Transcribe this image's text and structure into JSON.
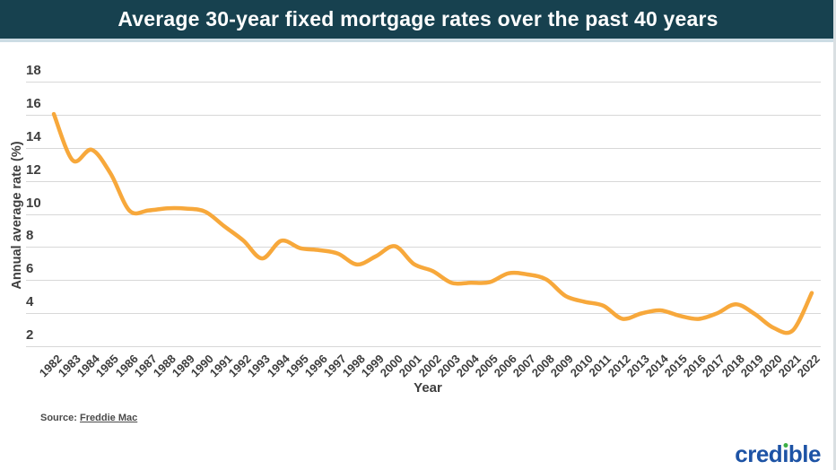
{
  "title": "Average 30-year fixed mortgage rates over the past 40 years",
  "chart_data": {
    "type": "line",
    "title": "Average 30-year fixed mortgage rates over the past 40 years",
    "xlabel": "Year",
    "ylabel": "Annual average rate (%)",
    "x": [
      1982,
      1983,
      1984,
      1985,
      1986,
      1987,
      1988,
      1989,
      1990,
      1991,
      1992,
      1993,
      1994,
      1995,
      1996,
      1997,
      1998,
      1999,
      2000,
      2001,
      2002,
      2003,
      2004,
      2005,
      2006,
      2007,
      2008,
      2009,
      2010,
      2011,
      2012,
      2013,
      2014,
      2015,
      2016,
      2017,
      2018,
      2019,
      2020,
      2021,
      2022
    ],
    "series": [
      {
        "name": "Average 30-year fixed mortgage rate",
        "values": [
          16.04,
          13.24,
          13.88,
          12.43,
          10.19,
          10.21,
          10.34,
          10.32,
          10.13,
          9.25,
          8.39,
          7.31,
          8.38,
          7.93,
          7.81,
          7.6,
          6.94,
          7.44,
          8.05,
          6.97,
          6.54,
          5.83,
          5.84,
          5.87,
          6.41,
          6.34,
          6.03,
          5.04,
          4.69,
          4.45,
          3.66,
          3.98,
          4.17,
          3.85,
          3.65,
          3.99,
          4.54,
          3.94,
          3.1,
          2.96,
          5.22
        ]
      }
    ],
    "ylim": [
      2,
      18
    ],
    "yticks": [
      2,
      4,
      6,
      8,
      10,
      12,
      14,
      16,
      18
    ],
    "grid": "horizontal",
    "legend": "none"
  },
  "source": {
    "prefix": "Source:",
    "link": "Freddie Mac"
  },
  "logo": {
    "text": "credible",
    "color": "#1d53a5",
    "dot_color": "#3cb043"
  },
  "colors": {
    "titlebar_bg": "#17414f",
    "titlebar_text": "#ffffff",
    "divider": "#ccdce4",
    "line": "#f7a83b",
    "grid": "#d8d8d8",
    "tick_text": "#3e3e3e"
  }
}
